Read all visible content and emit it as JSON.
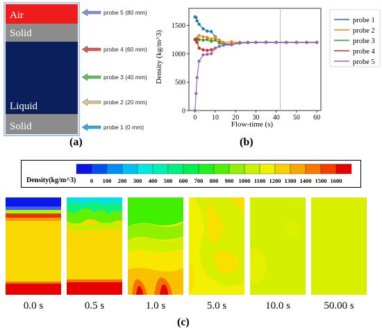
{
  "panel_a": {
    "caption": "(a)",
    "layers": {
      "air": "Air",
      "solid_top": "Solid",
      "liquid": "Liquid",
      "solid_bottom": "Solid"
    },
    "probes": [
      "probe 5 (80 mm)",
      "probe 4 (60 mm)",
      "probe 3 (40 mm)",
      "probe 2 (20 mm)",
      "probe 1 (0 mm)"
    ],
    "colors": {
      "air": "#ee1c1c",
      "solid": "#8c8c8c",
      "liquid": "#0b1f5c",
      "frame": "#a7c7e7"
    },
    "arrow_colors": [
      "#8090d0",
      "#e05050",
      "#60c060",
      "#d8c890",
      "#30a8e0"
    ]
  },
  "panel_b": {
    "caption": "(b)"
  },
  "chart_data": {
    "type": "line",
    "xlabel": "Flow-time (s)",
    "ylabel": "Density (kg/m^3)",
    "xlim": [
      -3,
      62
    ],
    "ylim": [
      0,
      1800
    ],
    "xticks": [
      0,
      10,
      20,
      30,
      40,
      50,
      60
    ],
    "yticks": [
      0,
      500,
      1000,
      1500
    ],
    "vline_x": 42,
    "legend_position": "right",
    "series": [
      {
        "name": "probe 1",
        "color": "#1f77b4",
        "x": [
          0,
          0.5,
          1,
          2,
          4,
          6,
          8,
          10,
          12,
          14,
          18,
          22,
          26,
          30,
          35,
          40,
          45,
          50,
          55,
          60
        ],
        "y": [
          1650,
          1640,
          1580,
          1520,
          1440,
          1400,
          1390,
          1300,
          1230,
          1180,
          1170,
          1200,
          1200,
          1200,
          1205,
          1200,
          1200,
          1200,
          1200,
          1200
        ]
      },
      {
        "name": "probe 2",
        "color": "#ff7f0e",
        "x": [
          0,
          0.5,
          1,
          2,
          4,
          6,
          8,
          10,
          12,
          14,
          18,
          22,
          26,
          30,
          35,
          40,
          45,
          50,
          55,
          60
        ],
        "y": [
          1250,
          1260,
          1280,
          1320,
          1300,
          1290,
          1260,
          1290,
          1240,
          1200,
          1210,
          1195,
          1200,
          1200,
          1200,
          1200,
          1200,
          1200,
          1200,
          1200
        ]
      },
      {
        "name": "probe 3",
        "color": "#2ca02c",
        "x": [
          0,
          0.5,
          1,
          2,
          4,
          6,
          8,
          10,
          12,
          14,
          18,
          22,
          26,
          30,
          35,
          40,
          45,
          50,
          55,
          60
        ],
        "y": [
          1250,
          1250,
          1260,
          1250,
          1240,
          1250,
          1220,
          1240,
          1190,
          1160,
          1170,
          1195,
          1200,
          1200,
          1200,
          1200,
          1200,
          1200,
          1200,
          1200
        ]
      },
      {
        "name": "probe 4",
        "color": "#d62728",
        "x": [
          0,
          0.5,
          1,
          2,
          4,
          6,
          8,
          10,
          12,
          14,
          18,
          22,
          26,
          30,
          35,
          40,
          45,
          50,
          55,
          60
        ],
        "y": [
          1250,
          1240,
          1200,
          1100,
          1070,
          1060,
          1070,
          1100,
          1130,
          1150,
          1160,
          1185,
          1195,
          1200,
          1200,
          1200,
          1200,
          1200,
          1200,
          1200
        ]
      },
      {
        "name": "probe 5",
        "color": "#9467bd",
        "x": [
          0,
          0.5,
          1,
          2,
          4,
          6,
          8,
          10,
          12,
          14,
          18,
          22,
          26,
          30,
          35,
          40,
          45,
          50,
          55,
          60
        ],
        "y": [
          0,
          300,
          580,
          870,
          980,
          990,
          1000,
          1100,
          1130,
          1150,
          1170,
          1185,
          1195,
          1200,
          1200,
          1200,
          1200,
          1200,
          1200,
          1200
        ]
      }
    ]
  },
  "colorbar": {
    "label": "Density(kg/m^3)",
    "ticks": [
      "0",
      "100",
      "200",
      "300",
      "400",
      "500",
      "600",
      "700",
      "800",
      "900",
      "1000",
      "1100",
      "1200",
      "1300",
      "1400",
      "1500",
      "1600"
    ],
    "colors": [
      "#0a14e6",
      "#0050f0",
      "#0090f5",
      "#00c0f5",
      "#00e8e0",
      "#00f0b0",
      "#00f080",
      "#00f050",
      "#20f020",
      "#50f000",
      "#90f000",
      "#c8f000",
      "#f0f000",
      "#f8d000",
      "#f8a800",
      "#f87800",
      "#f83c00",
      "#e80000"
    ]
  },
  "panel_c": {
    "caption": "(c)",
    "times": [
      "0.0 s",
      "0.5 s",
      "1.0 s",
      "5.0 s",
      "10.0 s",
      "50.00 s"
    ]
  }
}
